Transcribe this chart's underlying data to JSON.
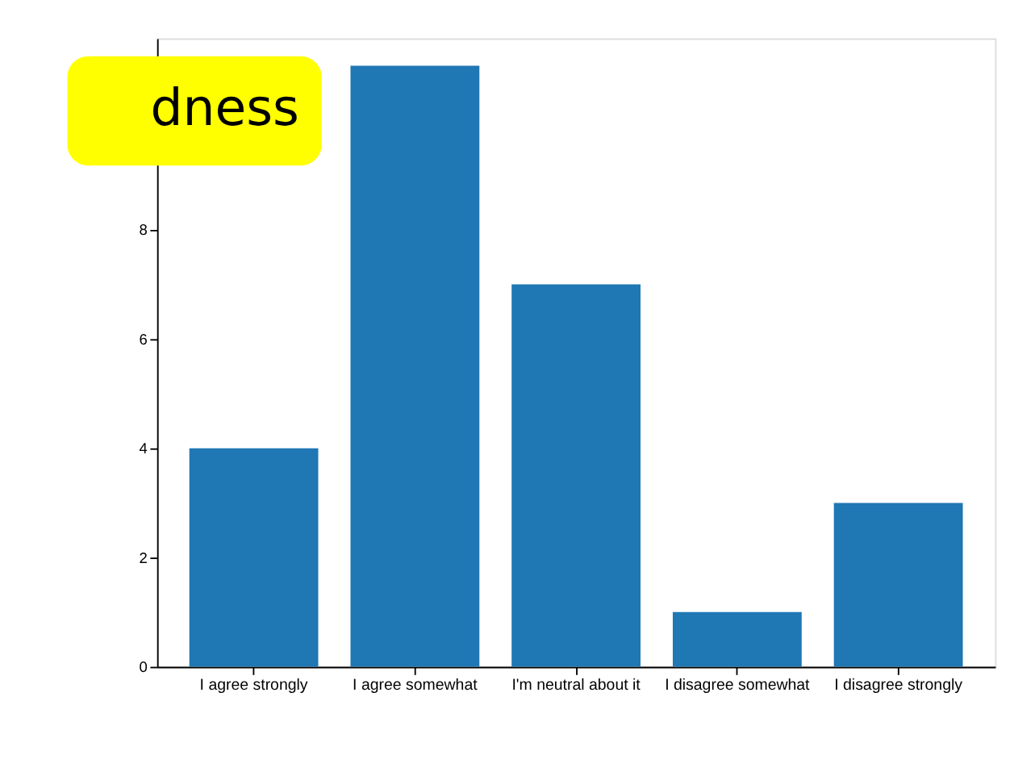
{
  "chart_data": {
    "type": "bar",
    "categories": [
      "I agree strongly",
      "I agree somewhat",
      "I'm neutral about it",
      "I disagree somewhat",
      "I disagree strongly"
    ],
    "values": [
      4,
      11,
      7,
      1,
      3
    ],
    "color": "#1f77b4",
    "ylim": [
      0,
      11.5
    ],
    "yticks": [
      0,
      2,
      4,
      6,
      8
    ],
    "grid": false,
    "annotations": [
      "dness"
    ]
  }
}
